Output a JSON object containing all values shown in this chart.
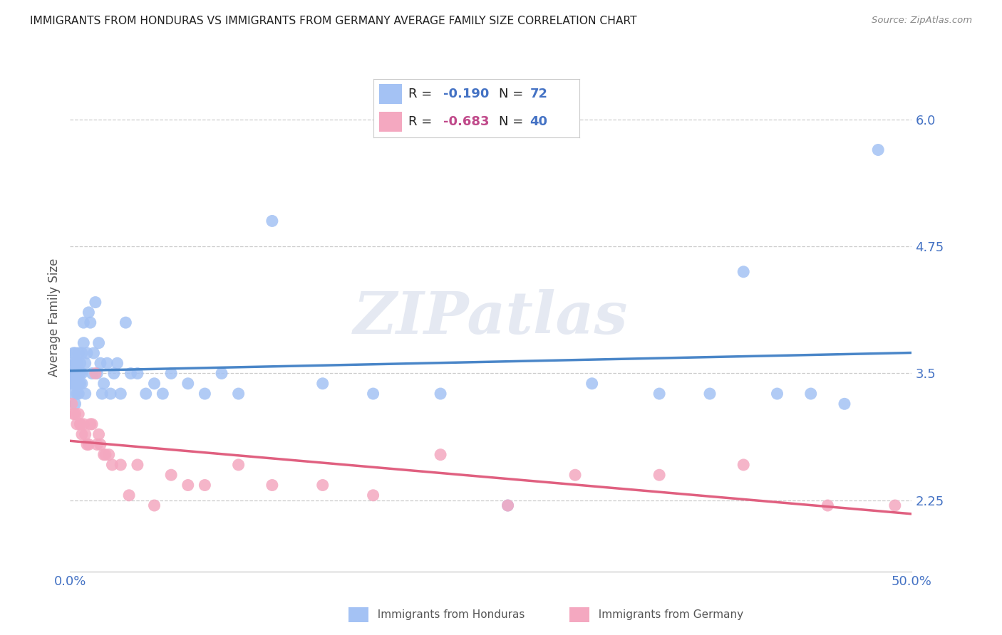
{
  "title": "IMMIGRANTS FROM HONDURAS VS IMMIGRANTS FROM GERMANY AVERAGE FAMILY SIZE CORRELATION CHART",
  "source": "Source: ZipAtlas.com",
  "ylabel": "Average Family Size",
  "yticks": [
    2.25,
    3.5,
    4.75,
    6.0
  ],
  "xtick_positions": [
    0.0,
    0.1,
    0.2,
    0.3,
    0.4,
    0.5
  ],
  "xtick_labels": [
    "0.0%",
    "",
    "",
    "",
    "",
    "50.0%"
  ],
  "xlim": [
    0.0,
    0.5
  ],
  "ylim": [
    1.55,
    6.55
  ],
  "watermark_text": "ZIPatlas",
  "series": [
    {
      "name": "Immigrants from Honduras",
      "R": -0.19,
      "N": 72,
      "marker_color": "#a4c2f4",
      "line_color": "#4a86c8",
      "x": [
        0.001,
        0.001,
        0.001,
        0.002,
        0.002,
        0.002,
        0.002,
        0.003,
        0.003,
        0.003,
        0.003,
        0.003,
        0.004,
        0.004,
        0.004,
        0.004,
        0.004,
        0.004,
        0.005,
        0.005,
        0.005,
        0.005,
        0.006,
        0.006,
        0.006,
        0.007,
        0.007,
        0.007,
        0.008,
        0.008,
        0.009,
        0.009,
        0.01,
        0.011,
        0.012,
        0.013,
        0.014,
        0.015,
        0.016,
        0.017,
        0.018,
        0.019,
        0.02,
        0.022,
        0.024,
        0.026,
        0.028,
        0.03,
        0.033,
        0.036,
        0.04,
        0.045,
        0.05,
        0.055,
        0.06,
        0.07,
        0.08,
        0.09,
        0.1,
        0.12,
        0.15,
        0.18,
        0.22,
        0.26,
        0.31,
        0.35,
        0.38,
        0.4,
        0.42,
        0.44,
        0.46,
        0.48
      ],
      "y": [
        3.6,
        3.5,
        3.4,
        3.7,
        3.5,
        3.4,
        3.3,
        3.6,
        3.5,
        3.4,
        3.2,
        3.7,
        3.6,
        3.5,
        3.4,
        3.3,
        3.5,
        3.6,
        3.7,
        3.5,
        3.4,
        3.3,
        3.5,
        3.6,
        3.4,
        3.5,
        3.7,
        3.4,
        4.0,
        3.8,
        3.6,
        3.3,
        3.7,
        4.1,
        4.0,
        3.5,
        3.7,
        4.2,
        3.5,
        3.8,
        3.6,
        3.3,
        3.4,
        3.6,
        3.3,
        3.5,
        3.6,
        3.3,
        4.0,
        3.5,
        3.5,
        3.3,
        3.4,
        3.3,
        3.5,
        3.4,
        3.3,
        3.5,
        3.3,
        5.0,
        3.4,
        3.3,
        3.3,
        2.2,
        3.4,
        3.3,
        3.3,
        4.5,
        3.3,
        3.3,
        3.2,
        5.7
      ]
    },
    {
      "name": "Immigrants from Germany",
      "R": -0.683,
      "N": 40,
      "marker_color": "#f4a8c0",
      "line_color": "#e06080",
      "x": [
        0.001,
        0.002,
        0.003,
        0.004,
        0.005,
        0.006,
        0.006,
        0.007,
        0.008,
        0.009,
        0.01,
        0.011,
        0.012,
        0.013,
        0.015,
        0.016,
        0.017,
        0.018,
        0.02,
        0.021,
        0.023,
        0.025,
        0.03,
        0.035,
        0.04,
        0.05,
        0.06,
        0.07,
        0.08,
        0.1,
        0.12,
        0.15,
        0.18,
        0.22,
        0.26,
        0.3,
        0.35,
        0.4,
        0.45,
        0.49
      ],
      "y": [
        3.2,
        3.1,
        3.1,
        3.0,
        3.1,
        3.0,
        3.0,
        2.9,
        3.0,
        2.9,
        2.8,
        2.8,
        3.0,
        3.0,
        3.5,
        2.8,
        2.9,
        2.8,
        2.7,
        2.7,
        2.7,
        2.6,
        2.6,
        2.3,
        2.6,
        2.2,
        2.5,
        2.4,
        2.4,
        2.6,
        2.4,
        2.4,
        2.3,
        2.7,
        2.2,
        2.5,
        2.5,
        2.6,
        2.2,
        2.2
      ]
    }
  ],
  "legend": {
    "R1": "-0.190",
    "N1": "72",
    "R2": "-0.683",
    "N2": "40",
    "color1": "#a4c2f4",
    "color2": "#f4a8c0",
    "R_color": "#4472c4",
    "N_color": "#4472c4",
    "R2_color": "#c0498a"
  },
  "title_color": "#222222",
  "source_color": "#888888",
  "tick_color": "#4472c4",
  "grid_color": "#cccccc",
  "ylabel_color": "#555555",
  "bg_color": "#ffffff"
}
